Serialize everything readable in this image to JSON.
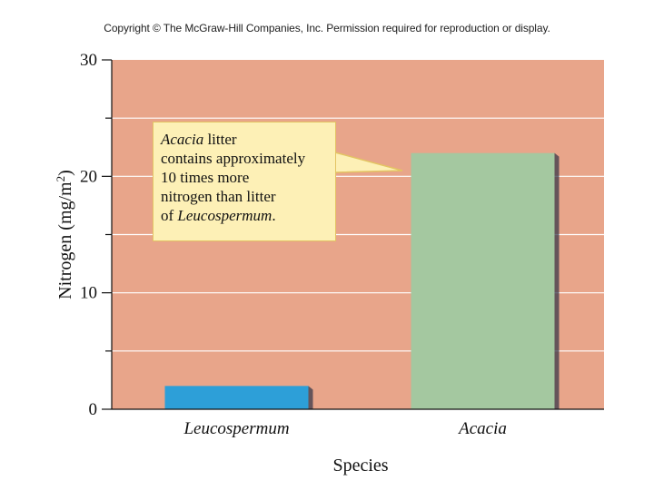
{
  "copyright": "Copyright © The McGraw-Hill Companies, Inc. Permission required for reproduction or display.",
  "callout": {
    "line1_italic": "Acacia",
    "line1_rest": " litter",
    "line2": "contains approximately",
    "line3": "10 times more",
    "line4": "nitrogen than litter",
    "line5_pre": "of ",
    "line5_italic": "Leucospermum",
    "line5_post": "."
  },
  "colors": {
    "plot_bg": "#e8a58a",
    "leucospermum_bar": "#2d9fd8",
    "acacia_bar": "#a4c8a0",
    "gridline": "#ffffff",
    "callout_bg": "#fdf0b6"
  },
  "chart_data": {
    "type": "bar",
    "categories": [
      "Leucospermum",
      "Acacia"
    ],
    "values": [
      2,
      22
    ],
    "xlabel": "Species",
    "ylabel": "Nitrogen (mg/m²)",
    "ylabel_main": "Nitrogen (mg/m",
    "ylabel_sup": "2",
    "ylabel_end": ")",
    "ylim": [
      0,
      30
    ],
    "yticks": [
      "0",
      "10",
      "20",
      "30"
    ],
    "grid": true
  }
}
